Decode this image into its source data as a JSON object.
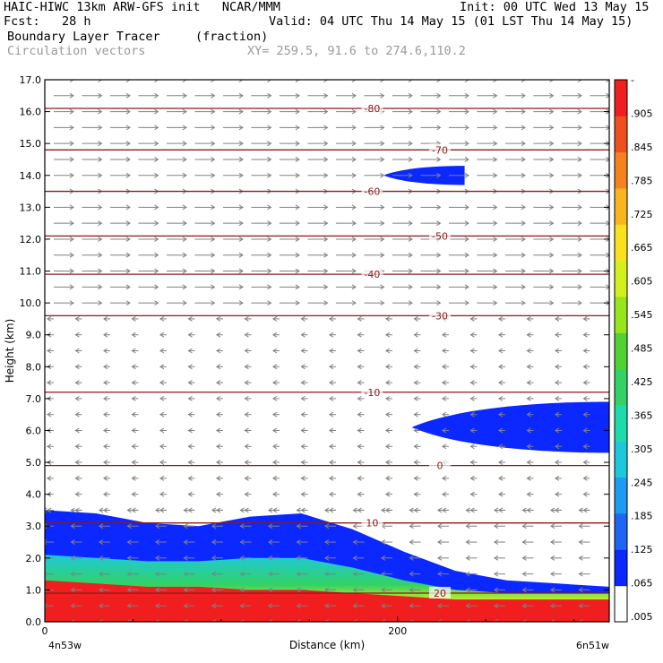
{
  "header": {
    "line1_left": "HAIC-HIWC 13km ARW-GFS init   NCAR/MMM",
    "line1_right": "Init: 00 UTC Wed 13 May 15",
    "line2_left": "Fcst:   28 h",
    "line2_right": "Valid: 04 UTC Thu 14 May 15 (01 LST Thu 14 May 15)",
    "line3_field": "Boundary Layer Tracer",
    "line3_units": "(fraction)",
    "line4_field": "Circulation vectors",
    "line4_xy": "XY= 259.5, 91.6 to 274.6,110.2"
  },
  "colors": {
    "contour": "#8b1a1a",
    "vector": "#808080",
    "axis": "#000000"
  },
  "chart_data": {
    "type": "heatmap",
    "xlabel": "Distance (km)",
    "ylabel": "Height (km)",
    "xlim": [
      0,
      320
    ],
    "ylim": [
      0,
      17
    ],
    "x_ticks": [
      {
        "v": 0,
        "label": "0"
      },
      {
        "v": 200,
        "label": "200"
      }
    ],
    "x_end_labels": {
      "left": "4n53w",
      "right": "6n51w"
    },
    "y_ticks": [
      "0.0",
      "1.0",
      "2.0",
      "3.0",
      "4.0",
      "5.0",
      "6.0",
      "7.0",
      "8.0",
      "9.0",
      "10.0",
      "11.0",
      "12.0",
      "13.0",
      "14.0",
      "15.0",
      "16.0",
      "17.0"
    ],
    "colorbar": {
      "min": 0,
      "max": 1,
      "labels": [
        ".005",
        ".065",
        ".125",
        ".185",
        ".245",
        ".305",
        ".365",
        ".425",
        ".485",
        ".545",
        ".605",
        ".665",
        ".725",
        ".785",
        ".845",
        ".905",
        "-"
      ],
      "colors": [
        "#ffffff",
        "#0a28ff",
        "#1e64f5",
        "#1e9bf0",
        "#1ec8dc",
        "#1edcaa",
        "#32d264",
        "#50d232",
        "#96e61e",
        "#d2f01e",
        "#fae11e",
        "#fab41e",
        "#f5821e",
        "#f0501e",
        "#f01e1e"
      ]
    },
    "tracer_field": [
      {
        "level": 0.005,
        "region": "blue layer",
        "top_km": [
          3.5,
          3.4,
          3.1,
          3.0,
          3.3,
          3.4,
          2.9,
          2.2,
          1.6,
          1.3,
          1.2,
          1.1
        ]
      },
      {
        "level": 0.5,
        "region": "green-yellow layer",
        "top_km": [
          2.1,
          2.0,
          1.9,
          1.9,
          2.0,
          2.0,
          1.7,
          1.3,
          1.0,
          0.9,
          0.9,
          0.9
        ]
      },
      {
        "level": 0.9,
        "region": "red surface layer",
        "top_km": [
          1.3,
          1.2,
          1.1,
          1.1,
          1.0,
          1.0,
          0.9,
          0.8,
          0.7,
          0.7,
          0.7,
          0.7
        ]
      }
    ],
    "tracer_patches": [
      {
        "region": "upper blob",
        "x_km": [
          192,
          238
        ],
        "z_km": [
          13.7,
          14.3
        ]
      },
      {
        "region": "mid-level tongue",
        "x_km": [
          208,
          320
        ],
        "z_km": [
          5.3,
          6.9
        ]
      }
    ],
    "temperature_contours": [
      {
        "label": "-80",
        "z_km": 16.1
      },
      {
        "label": "-70",
        "z_km": 14.8
      },
      {
        "label": "-60",
        "z_km": 13.5
      },
      {
        "label": "-50",
        "z_km": 12.1
      },
      {
        "label": "-40",
        "z_km": 10.9
      },
      {
        "label": "-30",
        "z_km": 9.6
      },
      {
        "label": "-10",
        "z_km": 7.2
      },
      {
        "label": "0",
        "z_km": 4.9
      },
      {
        "label": "10",
        "z_km": 3.1
      },
      {
        "label": "20",
        "z_km": 0.9
      }
    ],
    "wind_vectors": [
      {
        "layer": "upper westerlies",
        "z_range_km": [
          9.8,
          17
        ],
        "direction": "east",
        "strength": "strong"
      },
      {
        "layer": "mid levels",
        "z_range_km": [
          3.5,
          9.5
        ],
        "direction": "west",
        "strength": "weak"
      },
      {
        "layer": "lower levels",
        "z_range_km": [
          0,
          3.5
        ],
        "direction": "west",
        "strength": "moderate"
      }
    ]
  }
}
